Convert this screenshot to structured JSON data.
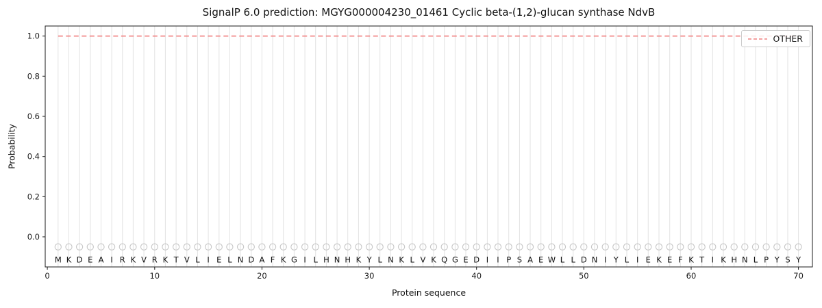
{
  "chart_data": {
    "type": "line",
    "title": "SignalP 6.0 prediction: MGYG000004230_01461 Cyclic beta-(1,2)-glucan synthase NdvB",
    "xlabel": "Protein sequence",
    "ylabel": "Probability",
    "xlim": [
      -0.2,
      71.3
    ],
    "ylim": [
      -0.15,
      1.05
    ],
    "xticks": [
      0,
      10,
      20,
      30,
      40,
      50,
      60,
      70
    ],
    "yticks": [
      0.0,
      0.2,
      0.4,
      0.6,
      0.8,
      1.0
    ],
    "grid": {
      "vertical_per_residue": true,
      "color": "#e2e2e2"
    },
    "sequence": [
      "M",
      "K",
      "D",
      "E",
      "A",
      "I",
      "R",
      "K",
      "V",
      "R",
      "K",
      "T",
      "V",
      "L",
      "I",
      "E",
      "L",
      "N",
      "D",
      "A",
      "F",
      "K",
      "G",
      "I",
      "L",
      "H",
      "N",
      "H",
      "K",
      "Y",
      "L",
      "N",
      "K",
      "L",
      "V",
      "K",
      "Q",
      "G",
      "E",
      "D",
      "I",
      "I",
      "P",
      "S",
      "A",
      "E",
      "W",
      "L",
      "L",
      "D",
      "N",
      "I",
      "Y",
      "L",
      "I",
      "E",
      "K",
      "E",
      "F",
      "K",
      "T",
      "I",
      "K",
      "H",
      "N",
      "L",
      "P",
      "Y",
      "S",
      "Y"
    ],
    "x_range": [
      1,
      70
    ],
    "series": [
      {
        "name": "OTHER",
        "color": "#f08080",
        "line_style": "dashed",
        "values": [
          1.0,
          1.0,
          1.0,
          1.0,
          1.0,
          1.0,
          1.0,
          1.0,
          1.0,
          1.0,
          1.0,
          1.0,
          1.0,
          1.0,
          1.0,
          1.0,
          1.0,
          1.0,
          1.0,
          1.0,
          1.0,
          1.0,
          1.0,
          1.0,
          1.0,
          1.0,
          1.0,
          1.0,
          1.0,
          1.0,
          1.0,
          1.0,
          1.0,
          1.0,
          1.0,
          1.0,
          1.0,
          1.0,
          1.0,
          1.0,
          1.0,
          1.0,
          1.0,
          1.0,
          1.0,
          1.0,
          1.0,
          1.0,
          1.0,
          1.0,
          1.0,
          1.0,
          1.0,
          1.0,
          1.0,
          1.0,
          1.0,
          1.0,
          1.0,
          1.0,
          1.0,
          1.0,
          1.0,
          1.0,
          1.0,
          1.0,
          1.0,
          1.0,
          1.0,
          1.0
        ]
      }
    ],
    "residue_markers": {
      "y": -0.05,
      "shape": "circle",
      "color": "#c6c6c6"
    },
    "legend": {
      "position": "upper-right",
      "entries": [
        "OTHER"
      ]
    }
  }
}
